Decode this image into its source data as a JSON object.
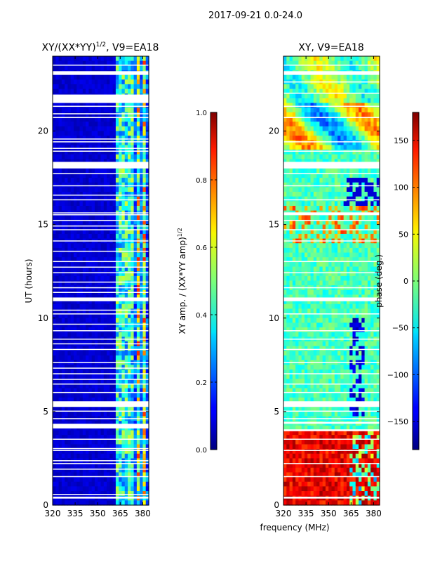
{
  "suptitle": "2017-09-21 0.0-24.0",
  "xlabel_shared": "frequency (MHz)",
  "chart_data": [
    {
      "type": "heatmap",
      "title": "XY/(XX*YY)^1/2, V9=EA18",
      "title_main": "XY/(XX*YY)",
      "title_exp": "1/2",
      "title_tail": ", V9=EA18",
      "xlabel": "",
      "ylabel": "UT (hours)",
      "xlim": [
        320,
        384
      ],
      "ylim": [
        0,
        24
      ],
      "xticks": [
        320,
        335,
        350,
        365,
        380
      ],
      "xtick_labels": [
        "320",
        "335",
        "350",
        "365",
        "380"
      ],
      "yticks": [
        0,
        5,
        10,
        15,
        20
      ],
      "ytick_labels": [
        "0",
        "5",
        "10",
        "15",
        "20"
      ],
      "colormap": "jet",
      "colorbar": {
        "label": "XY amp. / (XX*YY amp)^1/2",
        "label_main": "XY amp. / (XX*YY amp)",
        "label_exp": "1/2",
        "range": [
          0.0,
          1.0
        ],
        "ticks": [
          0.0,
          0.2,
          0.4,
          0.6,
          0.8,
          1.0
        ],
        "tick_labels": [
          "0.0",
          "0.2",
          "0.4",
          "0.6",
          "0.8",
          "1.0"
        ]
      },
      "description_values": {
        "background_level": 0.05,
        "band_channels_MHz": [
          364,
          368,
          372,
          377,
          381
        ],
        "band_level_range": [
          0.3,
          0.85
        ]
      },
      "flagged_hours": [
        [
          0.35,
          0.45
        ],
        [
          0.55,
          0.6
        ],
        [
          1.5,
          1.55
        ],
        [
          1.9,
          1.95
        ],
        [
          2.2,
          2.25
        ],
        [
          2.35,
          2.4
        ],
        [
          2.9,
          2.95
        ],
        [
          3.0,
          3.05
        ],
        [
          3.5,
          3.55
        ],
        [
          4.1,
          4.35
        ],
        [
          4.6,
          4.65
        ],
        [
          5.0,
          5.05
        ],
        [
          5.25,
          5.55
        ],
        [
          6.0,
          6.05
        ],
        [
          6.45,
          6.5
        ],
        [
          6.7,
          6.75
        ],
        [
          7.0,
          7.05
        ],
        [
          7.3,
          7.35
        ],
        [
          7.6,
          7.65
        ],
        [
          8.3,
          8.35
        ],
        [
          8.6,
          8.65
        ],
        [
          8.85,
          8.9
        ],
        [
          9.3,
          9.35
        ],
        [
          9.65,
          9.7
        ],
        [
          10.2,
          10.25
        ],
        [
          10.4,
          10.45
        ],
        [
          10.9,
          11.1
        ],
        [
          11.35,
          11.4
        ],
        [
          11.6,
          11.65
        ],
        [
          11.9,
          11.95
        ],
        [
          12.4,
          12.45
        ],
        [
          12.7,
          12.75
        ],
        [
          13.0,
          13.05
        ],
        [
          13.55,
          13.6
        ],
        [
          14.1,
          14.15
        ],
        [
          14.7,
          14.75
        ],
        [
          14.9,
          14.95
        ],
        [
          15.2,
          15.25
        ],
        [
          15.5,
          15.55
        ],
        [
          15.6,
          15.65
        ],
        [
          16.3,
          16.35
        ],
        [
          16.55,
          16.6
        ],
        [
          17.05,
          17.1
        ],
        [
          17.7,
          17.75
        ],
        [
          18.0,
          18.35
        ],
        [
          18.9,
          18.95
        ],
        [
          19.05,
          19.1
        ],
        [
          19.4,
          19.45
        ],
        [
          19.55,
          19.6
        ],
        [
          20.7,
          20.75
        ],
        [
          20.9,
          20.95
        ],
        [
          21.3,
          21.35
        ],
        [
          21.5,
          21.95
        ],
        [
          23.0,
          23.2
        ],
        [
          23.5,
          23.55
        ]
      ]
    },
    {
      "type": "heatmap",
      "title": "XY, V9=EA18",
      "xlabel": "frequency (MHz)",
      "ylabel": "",
      "xlim": [
        320,
        384
      ],
      "ylim": [
        0,
        24
      ],
      "xticks": [
        320,
        335,
        350,
        365,
        380
      ],
      "xtick_labels": [
        "320",
        "335",
        "350",
        "365",
        "380"
      ],
      "yticks": [
        0,
        5,
        10,
        15,
        20
      ],
      "ytick_labels": [
        "0",
        "5",
        "10",
        "15",
        "20"
      ],
      "colormap": "jet",
      "colorbar": {
        "label": "phase (deg.)",
        "range": [
          -180,
          180
        ],
        "ticks": [
          -150,
          -100,
          -50,
          0,
          50,
          100,
          150
        ],
        "tick_labels": [
          "−150",
          "−100",
          "−50",
          "0",
          "50",
          "100",
          "150"
        ]
      },
      "description_values": {
        "low_hours_phase_deg_range": [
          100,
          180
        ],
        "mid_hours_phase_deg_range": [
          -40,
          40
        ]
      },
      "flagged_hours": [
        [
          0.35,
          0.45
        ],
        [
          1.5,
          1.55
        ],
        [
          2.2,
          2.25
        ],
        [
          2.9,
          2.95
        ],
        [
          3.5,
          3.55
        ],
        [
          3.95,
          4.05
        ],
        [
          4.35,
          4.45
        ],
        [
          4.6,
          4.65
        ],
        [
          5.0,
          5.05
        ],
        [
          5.25,
          5.55
        ],
        [
          6.0,
          6.05
        ],
        [
          6.45,
          6.5
        ],
        [
          7.0,
          7.05
        ],
        [
          7.6,
          7.65
        ],
        [
          8.3,
          8.35
        ],
        [
          8.85,
          8.9
        ],
        [
          9.3,
          9.35
        ],
        [
          10.2,
          10.25
        ],
        [
          10.9,
          11.1
        ],
        [
          11.6,
          11.65
        ],
        [
          12.4,
          12.45
        ],
        [
          13.0,
          13.05
        ],
        [
          14.1,
          14.15
        ],
        [
          14.7,
          14.75
        ],
        [
          15.2,
          15.25
        ],
        [
          15.5,
          15.65
        ],
        [
          16.3,
          16.35
        ],
        [
          17.05,
          17.1
        ],
        [
          17.7,
          17.75
        ],
        [
          18.0,
          18.35
        ],
        [
          18.9,
          18.95
        ],
        [
          19.4,
          19.45
        ],
        [
          20.7,
          20.75
        ],
        [
          21.3,
          21.35
        ],
        [
          22.0,
          22.05
        ],
        [
          22.6,
          22.65
        ],
        [
          23.0,
          23.2
        ],
        [
          23.5,
          23.55
        ]
      ]
    }
  ]
}
